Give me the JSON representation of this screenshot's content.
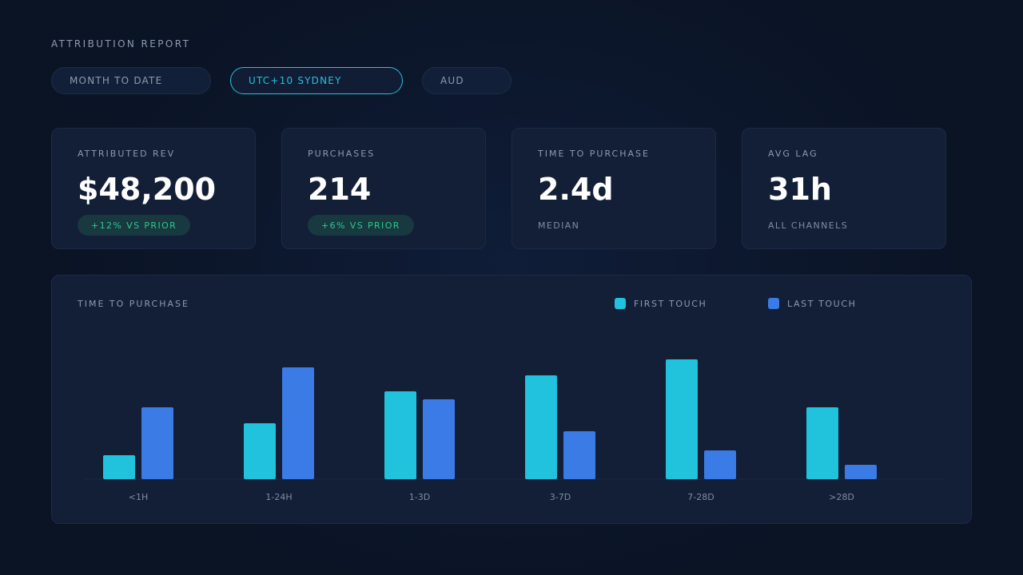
{
  "header": {
    "title": "ATTRIBUTION REPORT"
  },
  "filters": [
    {
      "label": "MONTH TO DATE",
      "active": false
    },
    {
      "label": "UTC+10 SYDNEY",
      "active": true
    },
    {
      "label": "AUD",
      "active": false
    }
  ],
  "kpis": [
    {
      "label": "ATTRIBUTED REV",
      "value": "$48,200",
      "delta": "+12% VS PRIOR"
    },
    {
      "label": "PURCHASES",
      "value": "214",
      "delta": "+6% VS PRIOR"
    },
    {
      "label": "TIME TO PURCHASE",
      "value": "2.4d",
      "sub": "MEDIAN"
    },
    {
      "label": "AVG LAG",
      "value": "31h",
      "sub": "ALL CHANNELS"
    }
  ],
  "colors": {
    "accent": "#22c3dd",
    "first_touch": "#20c2dc",
    "last_touch": "#3b7be6",
    "positive": "#2ec98f"
  },
  "chart_data": {
    "type": "bar",
    "title": "TIME TO PURCHASE",
    "categories": [
      "<1H",
      "1-24H",
      "1-3D",
      "3-7D",
      "7-28D",
      ">28D"
    ],
    "series": [
      {
        "name": "FIRST TOUCH",
        "values": [
          15,
          35,
          55,
          65,
          75,
          45
        ]
      },
      {
        "name": "LAST TOUCH",
        "values": [
          45,
          70,
          50,
          30,
          18,
          9
        ]
      }
    ],
    "ylim": [
      0,
      75
    ],
    "legend": "top-right",
    "grid": false
  }
}
